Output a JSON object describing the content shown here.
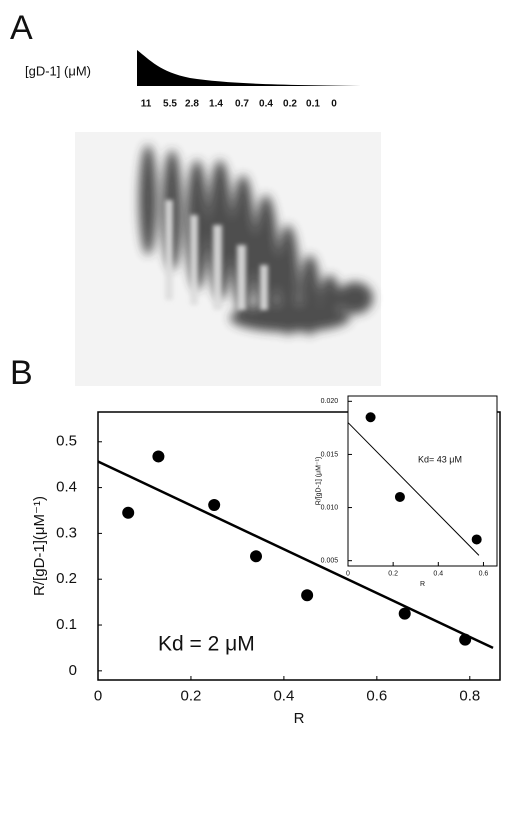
{
  "panel_a": {
    "label": "A",
    "axis_label": "[gD-1] (μM)",
    "concentrations": [
      11,
      5.5,
      2.8,
      1.4,
      0.7,
      0.4,
      0.2,
      0.1,
      0
    ]
  },
  "chart_data": [
    {
      "type": "scatter",
      "panel_label": "B",
      "x_label": "R",
      "y_label": "R/[gD-1](μM⁻¹)",
      "annotation": "Kd = 2 μM",
      "xlim": [
        0,
        0.865
      ],
      "ylim": [
        -0.02,
        0.565
      ],
      "xticks": [
        0,
        0.2,
        0.4,
        0.6,
        0.8
      ],
      "yticks": [
        0,
        0.1,
        0.2,
        0.3,
        0.4,
        0.5
      ],
      "series": [
        {
          "style": "markers",
          "color": "#000000",
          "x": [
            0.065,
            0.13,
            0.25,
            0.34,
            0.45,
            0.66,
            0.79
          ],
          "values": [
            0.345,
            0.468,
            0.362,
            0.25,
            0.165,
            0.125,
            0.068
          ]
        },
        {
          "style": "line",
          "color": "#000000",
          "x": [
            0,
            0.85
          ],
          "values": [
            0.457,
            0.05
          ]
        }
      ]
    },
    {
      "type": "scatter",
      "x_label": "R",
      "y_label": "R/[gD-1] (μM⁻¹)",
      "annotation": "Kd= 43 μM",
      "xlim": [
        0,
        0.66
      ],
      "ylim": [
        0.0045,
        0.0205
      ],
      "xticks": [
        0,
        0.2,
        0.4,
        0.6
      ],
      "yticks": [
        0.005,
        {
          "value": 0.01,
          "label": "0.010"
        },
        0.015,
        {
          "value": 0.02,
          "label": "0.020"
        }
      ],
      "series": [
        {
          "style": "markers",
          "color": "#000000",
          "x": [
            0.1,
            0.23,
            0.57
          ],
          "values": [
            0.0185,
            0.011,
            0.007
          ]
        },
        {
          "style": "line",
          "color": "#000000",
          "x": [
            0,
            0.58
          ],
          "values": [
            0.018,
            0.0055
          ]
        }
      ]
    }
  ]
}
